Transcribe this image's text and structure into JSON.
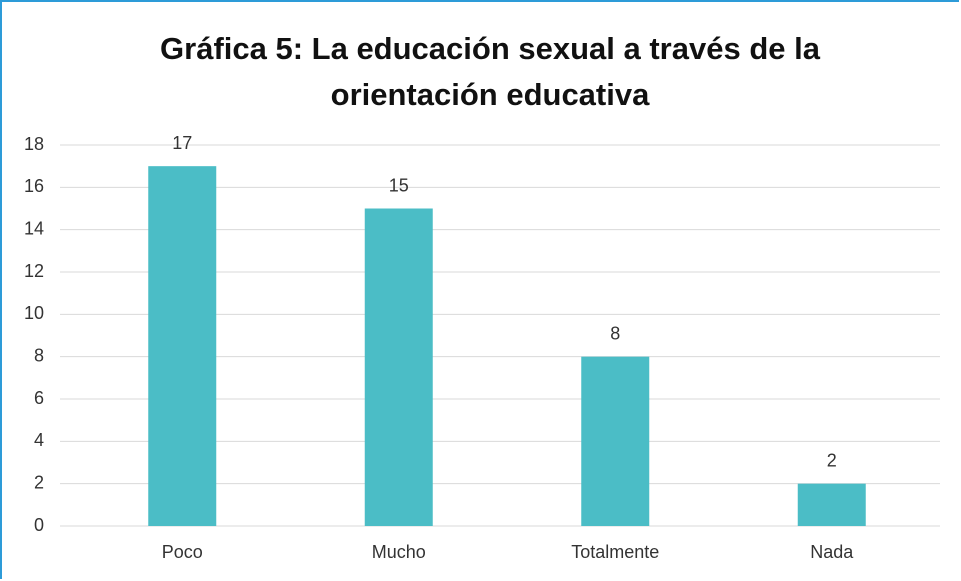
{
  "chart_data": {
    "type": "bar",
    "title": "Gráfica 5: La educación sexual a través de la orientación educativa",
    "categories": [
      "Poco",
      "Mucho",
      "Totalmente",
      "Nada"
    ],
    "values": [
      17,
      15,
      8,
      2
    ],
    "color": "#4bbdc6",
    "ylim": [
      0,
      18
    ],
    "yticks": [
      0,
      2,
      4,
      6,
      8,
      10,
      12,
      14,
      16,
      18
    ],
    "grid": true
  }
}
